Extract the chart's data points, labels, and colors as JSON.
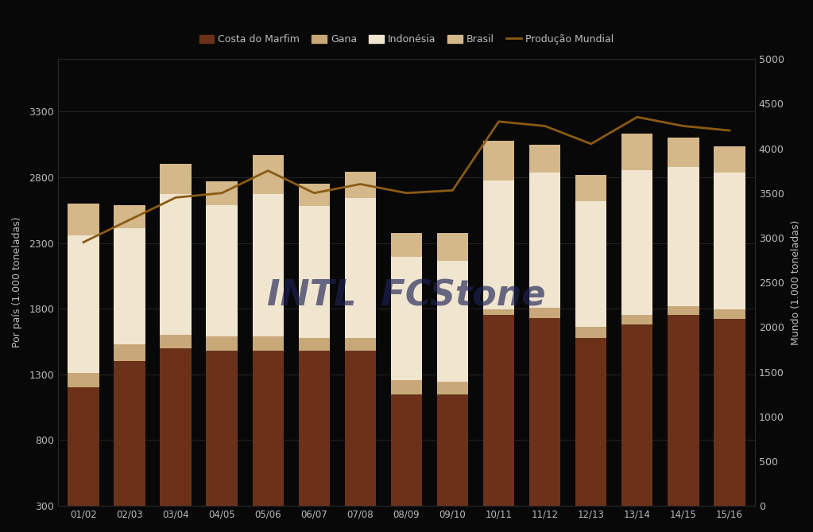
{
  "categories": [
    "01/02",
    "02/03",
    "03/04",
    "04/05",
    "05/06",
    "06/07",
    "07/08",
    "08/09",
    "09/10",
    "10/11",
    "11/12",
    "12/13",
    "13/14",
    "14/15",
    "15/16"
  ],
  "costa_marfim": [
    1200,
    1400,
    1500,
    1480,
    1480,
    1480,
    1480,
    1150,
    1150,
    1750,
    1730,
    1580,
    1680,
    1750,
    1720
  ],
  "gana": [
    110,
    130,
    100,
    110,
    110,
    100,
    100,
    105,
    95,
    45,
    75,
    85,
    75,
    70,
    75
  ],
  "indonesia": [
    1050,
    880,
    1070,
    1000,
    1080,
    1000,
    1060,
    940,
    920,
    980,
    1030,
    950,
    1100,
    1060,
    1040
  ],
  "brasil": [
    240,
    180,
    230,
    180,
    300,
    170,
    200,
    180,
    210,
    300,
    210,
    200,
    280,
    220,
    200
  ],
  "producao_mundial": [
    2950,
    3200,
    3450,
    3500,
    3750,
    3500,
    3600,
    3500,
    3530,
    4300,
    4250,
    4050,
    4350,
    4250,
    4200
  ],
  "bar_color_marfim": "#6B3219",
  "bar_color_gana": "#C8A878",
  "bar_color_indonesia": "#F0E6D0",
  "bar_color_brasil": "#D4B88A",
  "line_color": "#8B5A14",
  "background_color": "#080808",
  "text_color": "#bbbbbb",
  "grid_color": "#2a2a2a",
  "ylabel_left": "Por país (1.000 toneladas)",
  "ylabel_right": "Mundo (1.000 toneladas)",
  "ylim_left": [
    300,
    3700
  ],
  "ylim_right": [
    0,
    5000
  ],
  "yticks_left": [
    300,
    800,
    1300,
    1800,
    2300,
    2800,
    3300
  ],
  "yticks_right": [
    0,
    500,
    1000,
    1500,
    2000,
    2500,
    3000,
    3500,
    4000,
    4500,
    5000
  ],
  "legend_labels": [
    "Costa do Marfim",
    "Gana",
    "Indonésia",
    "Brasil",
    "Produção Mundial"
  ],
  "watermark_text": "INTL  FCStone",
  "watermark_color": "#1e2255",
  "watermark_alpha": 0.65,
  "watermark_fontsize": 32
}
